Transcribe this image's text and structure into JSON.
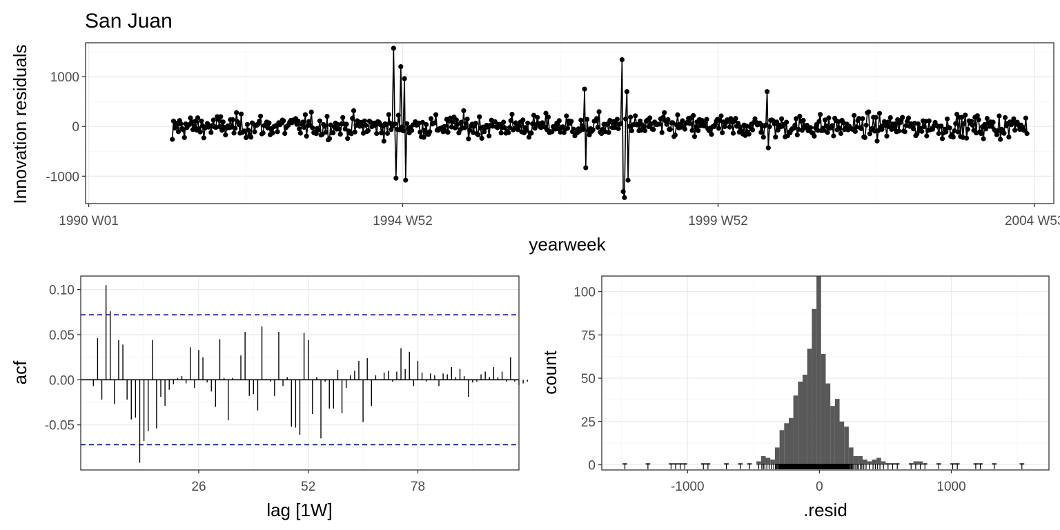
{
  "chart_data": [
    {
      "type": "line",
      "title": "San Juan",
      "xlabel": "yearweek",
      "ylabel": "Innovation residuals",
      "x_ticks": [
        "1990 W01",
        "1994 W52",
        "1999 W52",
        "2004 W53"
      ],
      "x_range_years": [
        1989.95,
        2005.3
      ],
      "y_ticks": [
        -1000,
        0,
        1000
      ],
      "ylim": [
        -1550,
        1680
      ],
      "series_start": "1991 W18",
      "series_end": "2004 W47",
      "residuals_typical_sd": 120,
      "notable_points": [
        {
          "x": "1991 W18",
          "y": -260
        },
        {
          "x": "1994 W44",
          "y": 1570
        },
        {
          "x": "1994 W46",
          "y": -1040
        },
        {
          "x": "1995 W02",
          "y": -1080
        },
        {
          "x": "1995 W01",
          "y": 960
        },
        {
          "x": "1994 W50",
          "y": 1200
        },
        {
          "x": "1997 W46",
          "y": 750
        },
        {
          "x": "1997 W47",
          "y": -830
        },
        {
          "x": "1998 W25",
          "y": 1340
        },
        {
          "x": "1998 W26",
          "y": -1310
        },
        {
          "x": "1998 W27",
          "y": -1430
        },
        {
          "x": "1998 W29",
          "y": 700
        },
        {
          "x": "1998 W30",
          "y": -1080
        },
        {
          "x": "2000 W40",
          "y": 700
        },
        {
          "x": "2000 W41",
          "y": -430
        }
      ],
      "grid": true
    },
    {
      "type": "bar",
      "subtype": "acf",
      "xlabel": "lag [1W]",
      "ylabel": "acf",
      "x_ticks": [
        26,
        52,
        78
      ],
      "y_ticks": [
        -0.05,
        0.0,
        0.05,
        0.1
      ],
      "y_tick_labels": [
        "-0.05",
        "0.00",
        "0.05",
        "0.10"
      ],
      "xlim": [
        -2,
        102
      ],
      "ylim": [
        -0.1,
        0.115
      ],
      "significance_level": 0.072,
      "significance_color": "#0000cd",
      "lags": [
        1,
        2,
        3,
        4,
        5,
        6,
        7,
        8,
        9,
        10,
        11,
        12,
        13,
        14,
        15,
        16,
        17,
        18,
        19,
        20,
        21,
        22,
        23,
        24,
        25,
        26,
        27,
        28,
        29,
        30,
        31,
        32,
        33,
        34,
        35,
        36,
        37,
        38,
        39,
        40,
        41,
        42,
        43,
        44,
        45,
        46,
        47,
        48,
        49,
        50,
        51,
        52,
        53,
        54,
        55,
        56,
        57,
        58,
        59,
        60,
        61,
        62,
        63,
        64,
        65,
        66,
        67,
        68,
        69,
        70,
        71,
        72,
        73,
        74,
        75,
        76,
        77,
        78,
        79,
        80,
        81,
        82,
        83,
        84,
        85,
        86,
        87,
        88,
        89,
        90,
        91,
        92,
        93,
        94,
        95,
        96,
        97,
        98,
        99,
        100,
        101,
        102,
        103,
        104
      ],
      "values": [
        -0.007,
        0.046,
        -0.022,
        0.105,
        0.076,
        -0.027,
        0.044,
        0.039,
        -0.022,
        -0.044,
        -0.042,
        -0.092,
        -0.068,
        -0.057,
        0.044,
        -0.054,
        -0.019,
        -0.029,
        -0.011,
        -0.005,
        0.002,
        0.004,
        -0.004,
        0.036,
        -0.009,
        0.033,
        0.025,
        -0.003,
        -0.013,
        -0.03,
        0.045,
        0.002,
        -0.045,
        0.002,
        0.0,
        0.027,
        0.053,
        -0.018,
        -0.016,
        -0.034,
        0.059,
        0.001,
        -0.002,
        -0.018,
        0.053,
        -0.007,
        0.003,
        -0.052,
        -0.053,
        -0.061,
        0.052,
        0.044,
        -0.038,
        0.003,
        -0.065,
        -0.002,
        -0.032,
        -0.032,
        0.011,
        -0.037,
        -0.009,
        0.005,
        0.01,
        0.021,
        -0.047,
        0.024,
        -0.029,
        0.005,
        0.0,
        0.008,
        0.01,
        -0.002,
        0.009,
        0.035,
        0.012,
        0.031,
        -0.007,
        0.021,
        0.008,
        -0.002,
        0.007,
        0.005,
        -0.007,
        0.007,
        0.006,
        0.014,
        0.003,
        0.012,
        0.004,
        -0.019,
        -0.003,
        -0.002,
        0.006,
        0.009,
        0.003,
        0.014,
        0.003,
        0.009,
        -0.002,
        0.025,
        -0.002,
        -0.006,
        -0.004,
        -0.002
      ],
      "grid": true
    },
    {
      "type": "bar",
      "subtype": "histogram",
      "xlabel": ".resid",
      "ylabel": "count",
      "x_ticks": [
        -1000,
        0,
        1000
      ],
      "y_ticks": [
        0,
        25,
        50,
        75,
        100
      ],
      "xlim": [
        -1650,
        1740
      ],
      "ylim": [
        -3,
        109
      ],
      "bin_width": 35,
      "bins": [
        {
          "x": -1475,
          "count": 1
        },
        {
          "x": -1300,
          "count": 1
        },
        {
          "x": -1125,
          "count": 1
        },
        {
          "x": -1090,
          "count": 1
        },
        {
          "x": -1055,
          "count": 1
        },
        {
          "x": -1020,
          "count": 1
        },
        {
          "x": -880,
          "count": 1
        },
        {
          "x": -845,
          "count": 1
        },
        {
          "x": -705,
          "count": 1
        },
        {
          "x": -600,
          "count": 1
        },
        {
          "x": -530,
          "count": 1
        },
        {
          "x": -460,
          "count": 2
        },
        {
          "x": -425,
          "count": 5
        },
        {
          "x": -390,
          "count": 4
        },
        {
          "x": -355,
          "count": 3
        },
        {
          "x": -320,
          "count": 10
        },
        {
          "x": -285,
          "count": 20
        },
        {
          "x": -250,
          "count": 24
        },
        {
          "x": -215,
          "count": 27
        },
        {
          "x": -180,
          "count": 40
        },
        {
          "x": -145,
          "count": 48
        },
        {
          "x": -110,
          "count": 52
        },
        {
          "x": -75,
          "count": 67
        },
        {
          "x": -40,
          "count": 90
        },
        {
          "x": -5,
          "count": 109
        },
        {
          "x": 30,
          "count": 64
        },
        {
          "x": 65,
          "count": 47
        },
        {
          "x": 100,
          "count": 34
        },
        {
          "x": 135,
          "count": 38
        },
        {
          "x": 170,
          "count": 25
        },
        {
          "x": 205,
          "count": 22
        },
        {
          "x": 240,
          "count": 10
        },
        {
          "x": 275,
          "count": 5
        },
        {
          "x": 310,
          "count": 5
        },
        {
          "x": 345,
          "count": 3
        },
        {
          "x": 380,
          "count": 2
        },
        {
          "x": 415,
          "count": 3
        },
        {
          "x": 450,
          "count": 4
        },
        {
          "x": 485,
          "count": 2
        },
        {
          "x": 520,
          "count": 1
        },
        {
          "x": 555,
          "count": 1
        },
        {
          "x": 590,
          "count": 1
        },
        {
          "x": 695,
          "count": 1
        },
        {
          "x": 730,
          "count": 2
        },
        {
          "x": 765,
          "count": 2
        },
        {
          "x": 800,
          "count": 1
        },
        {
          "x": 905,
          "count": 1
        },
        {
          "x": 1010,
          "count": 1
        },
        {
          "x": 1045,
          "count": 1
        },
        {
          "x": 1185,
          "count": 1
        },
        {
          "x": 1220,
          "count": 1
        },
        {
          "x": 1325,
          "count": 1
        },
        {
          "x": 1535,
          "count": 1
        }
      ],
      "rug": true,
      "grid": true
    }
  ]
}
